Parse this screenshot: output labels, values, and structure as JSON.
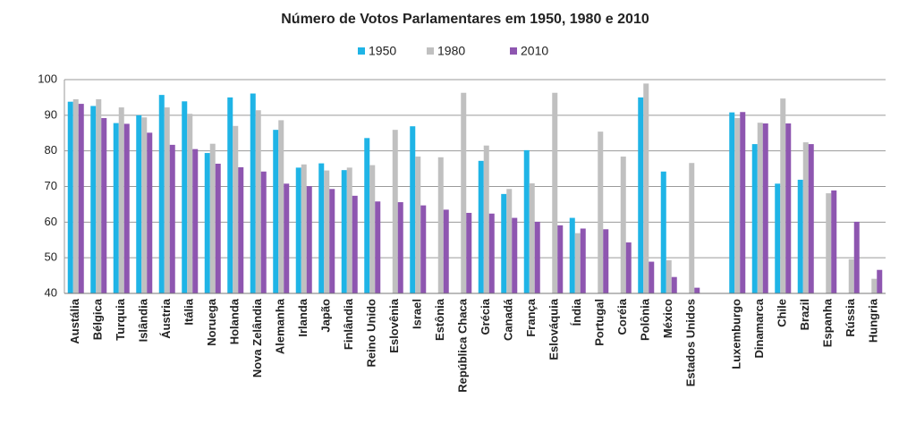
{
  "chart_data": {
    "type": "bar",
    "title": "Número de Votos Parlamentares em 1950, 1980 e 2010",
    "categories": [
      "Austália",
      "Bélgica",
      "Turquia",
      "Islândia",
      "Áustria",
      "Itália",
      "Noruega",
      "Holanda",
      "Nova Zelândia",
      "Alemanha",
      "Irlanda",
      "Japão",
      "Finlândia",
      "Reino Unido",
      "Eslovênia",
      "Israel",
      "Estônia",
      "República Chaca",
      "Grécia",
      "Canadá",
      "França",
      "Eslováquia",
      "Índia",
      "Portugal",
      "Coréia",
      "Polônia",
      "México",
      "Estados Unidos",
      null,
      "Luxemburgo",
      "Dinamarca",
      "Chile",
      "Brazil",
      "Espanha",
      "Rússia",
      "Hungria"
    ],
    "series": [
      {
        "name": "1950",
        "color": "#1fb4e6",
        "values": [
          93.8,
          92.6,
          87.8,
          90.0,
          95.7,
          93.9,
          79.4,
          95.0,
          96.1,
          85.9,
          75.3,
          76.5,
          74.6,
          83.6,
          null,
          86.9,
          null,
          null,
          77.2,
          67.9,
          80.2,
          null,
          61.2,
          null,
          null,
          95.0,
          74.2,
          null,
          null,
          90.8,
          81.9,
          70.8,
          71.9,
          null,
          null,
          null
        ]
      },
      {
        "name": "1980",
        "color": "#c0c0c0",
        "values": [
          94.5,
          94.5,
          92.2,
          89.4,
          92.2,
          90.4,
          82.0,
          87.0,
          91.4,
          88.6,
          76.2,
          74.5,
          75.3,
          76.0,
          85.9,
          78.4,
          78.2,
          96.3,
          81.5,
          69.3,
          70.9,
          96.3,
          56.9,
          85.4,
          78.4,
          98.9,
          49.3,
          76.6,
          null,
          89.2,
          87.9,
          94.7,
          82.4,
          68.1,
          49.6,
          44.1
        ]
      },
      {
        "name": "2010",
        "color": "#8e56b0",
        "values": [
          93.2,
          89.2,
          87.6,
          85.1,
          81.7,
          80.5,
          76.4,
          75.4,
          74.2,
          70.8,
          70.1,
          69.3,
          67.4,
          65.8,
          65.6,
          64.7,
          63.5,
          62.6,
          62.4,
          61.2,
          60.1,
          59.1,
          58.2,
          58.0,
          54.3,
          48.9,
          44.6,
          41.6,
          null,
          90.9,
          87.7,
          87.7,
          81.9,
          68.9,
          60.1,
          46.6
        ]
      }
    ],
    "ylim": [
      40,
      100
    ],
    "yticks": [
      40,
      50,
      60,
      70,
      80,
      90,
      100
    ],
    "grid": true
  }
}
